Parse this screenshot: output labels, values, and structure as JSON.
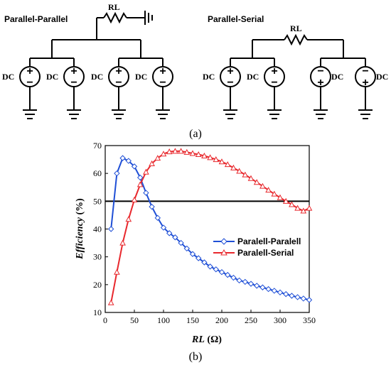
{
  "circuits": {
    "left_title": "Parallel-Parallel",
    "right_title": "Parallel-Serial",
    "resistor_label": "RL",
    "source_label": "DC",
    "caption": "(a)"
  },
  "chart_caption": "(b)",
  "chart_data": {
    "type": "line",
    "xlabel_var": "RL",
    "xlabel_unit": " (Ω)",
    "ylabel_var": "Efficiency",
    "ylabel_unit": " (%)",
    "xlim": [
      0,
      350
    ],
    "ylim": [
      10,
      70
    ],
    "xticks": [
      0,
      50,
      100,
      150,
      200,
      250,
      300,
      350
    ],
    "yticks": [
      10,
      20,
      30,
      40,
      50,
      60,
      70
    ],
    "reference_line": 50,
    "legend_position": "center-right",
    "x": [
      10,
      20,
      30,
      40,
      50,
      60,
      70,
      80,
      90,
      100,
      110,
      120,
      130,
      140,
      150,
      160,
      170,
      180,
      190,
      200,
      210,
      220,
      230,
      240,
      250,
      260,
      270,
      280,
      290,
      300,
      310,
      320,
      330,
      340,
      350
    ],
    "series": [
      {
        "name": "Paralell-Paralell",
        "color": "#1f4fd6",
        "marker": "diamond",
        "values": [
          40,
          60,
          65.5,
          64.5,
          62.5,
          58.5,
          53,
          48,
          44,
          40.5,
          38.5,
          37,
          35,
          33,
          31,
          29.5,
          28,
          26.5,
          25.5,
          24.5,
          23.5,
          22.5,
          21.5,
          21,
          20.3,
          19.6,
          19,
          18.4,
          17.8,
          17.2,
          16.6,
          16,
          15.5,
          15,
          14.5
        ]
      },
      {
        "name": "Paralell-Serial",
        "color": "#e8282d",
        "marker": "triangle",
        "values": [
          13.5,
          24.5,
          35,
          43.5,
          50.5,
          56,
          60.5,
          63.5,
          65.5,
          67,
          67.8,
          68,
          68,
          67.6,
          67.2,
          66.8,
          66.3,
          65.7,
          65,
          64.2,
          63.2,
          62,
          60.8,
          59.5,
          58.2,
          56.8,
          55.4,
          54,
          52.6,
          51.3,
          50,
          48.8,
          47.5,
          46.5,
          47.5
        ]
      }
    ]
  },
  "colors": {
    "reference_line": "#000000"
  }
}
